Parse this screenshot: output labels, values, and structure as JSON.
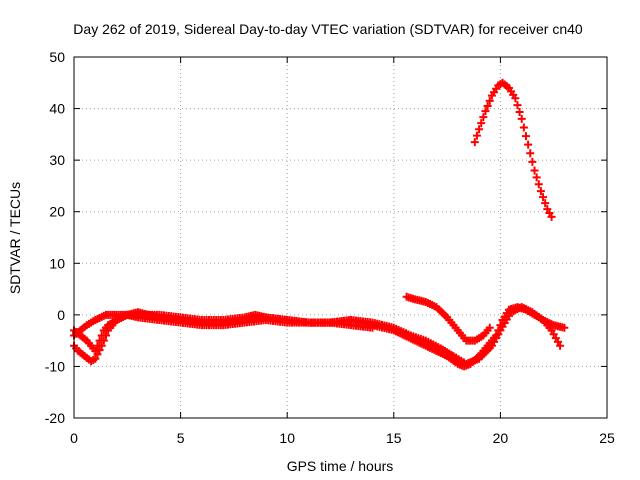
{
  "chart_data": {
    "type": "scatter",
    "title": "Day 262 of 2019, Sidereal Day-to-day VTEC variation (SDTVAR) for receiver cn40",
    "xlabel": "GPS time / hours",
    "ylabel": "SDTVAR / TECUs",
    "xlim": [
      0,
      25
    ],
    "ylim": [
      -20,
      50
    ],
    "xticks": [
      0,
      5,
      10,
      15,
      20,
      25
    ],
    "yticks": [
      -20,
      -10,
      0,
      10,
      20,
      30,
      40,
      50
    ],
    "xtick_labels": [
      "0",
      "5",
      "10",
      "15",
      "20",
      "25"
    ],
    "ytick_labels": [
      "-20",
      "-10",
      "0",
      "10",
      "20",
      "30",
      "40",
      "50"
    ],
    "grid": true,
    "marker": "+",
    "series_color": "#ff0000",
    "series": [
      {
        "name": "track-a",
        "x": [
          0.0,
          0.3,
          0.6,
          0.8,
          1.0,
          1.2,
          1.4,
          1.6,
          2.0,
          2.5,
          3.0,
          4.0,
          5.0,
          6.0,
          7.0,
          8.0,
          8.5,
          9.0,
          10.0,
          11.0,
          12.0,
          13.0,
          14.0,
          15.0,
          15.5,
          16.0,
          16.5,
          17.0,
          17.5,
          18.0,
          18.3,
          18.6,
          19.0,
          19.4,
          19.8,
          20.1,
          20.4,
          20.8,
          21.2,
          21.6,
          22.0,
          22.4,
          22.8
        ],
        "y": [
          -3,
          -4,
          -5,
          -6,
          -7,
          -5,
          -3,
          -2,
          -1,
          0,
          0,
          0,
          -0.5,
          -1,
          -1,
          -0.5,
          0,
          -0.5,
          -1,
          -1.5,
          -1.5,
          -1,
          -2,
          -3,
          -4,
          -5,
          -6,
          -7,
          -8,
          -9.5,
          -10,
          -9.5,
          -8,
          -6,
          -4,
          -1,
          1,
          1.5,
          1,
          0,
          -1,
          -3,
          -6
        ]
      },
      {
        "name": "track-b",
        "x": [
          0.0,
          0.2,
          0.5,
          0.8,
          1.0,
          1.3,
          1.6,
          2.0,
          2.5,
          3.0,
          3.5,
          4.0,
          5.0,
          6.0,
          7.0,
          8.0,
          9.0,
          10.0,
          11.0,
          12.0,
          13.0,
          14.0,
          15.0,
          15.8,
          16.5,
          17.2,
          17.8,
          18.4,
          19.0,
          19.6,
          20.0,
          20.5,
          21.0,
          21.5,
          22.0,
          22.5,
          23.0
        ],
        "y": [
          -6,
          -7,
          -8,
          -9,
          -8.5,
          -6,
          -3,
          -1,
          0,
          0.5,
          0,
          -0.5,
          -1,
          -1.5,
          -1.5,
          -1,
          -0.5,
          -1,
          -1.5,
          -1.5,
          -1,
          -1.5,
          -2.5,
          -4,
          -5,
          -6.5,
          -8,
          -9.5,
          -8.5,
          -6,
          -3,
          0.5,
          1.5,
          0.5,
          -1,
          -2,
          -2.5
        ]
      },
      {
        "name": "track-c",
        "x": [
          0.0,
          0.3,
          0.6,
          1.0,
          1.5,
          2.0,
          2.5,
          3.0,
          4.0,
          5.0,
          6.0,
          7.0,
          8.0,
          9.0,
          10.0,
          11.0,
          12.0,
          13.0,
          14.0
        ],
        "y": [
          -4,
          -3,
          -2,
          -1,
          0,
          0,
          0,
          -0.5,
          -1,
          -1.5,
          -2,
          -2,
          -1.5,
          -1,
          -1.5,
          -1.5,
          -1.5,
          -2,
          -2.5
        ]
      },
      {
        "name": "track-d",
        "x": [
          15.6,
          16.0,
          16.5,
          17.0,
          17.5,
          18.0,
          18.4,
          18.8,
          19.2,
          19.5
        ],
        "y": [
          3.5,
          3,
          2.5,
          1.5,
          -0.5,
          -3,
          -5,
          -5,
          -4,
          -2.5
        ]
      },
      {
        "name": "track-e",
        "x": [
          18.8,
          19.0,
          19.3,
          19.6,
          19.9,
          20.1,
          20.4,
          20.7,
          21.0,
          21.3,
          21.6,
          21.9,
          22.2,
          22.4
        ],
        "y": [
          33.5,
          36,
          39.5,
          42.5,
          44.5,
          45,
          44,
          42,
          38,
          33,
          28,
          24,
          20.5,
          19
        ]
      }
    ]
  }
}
